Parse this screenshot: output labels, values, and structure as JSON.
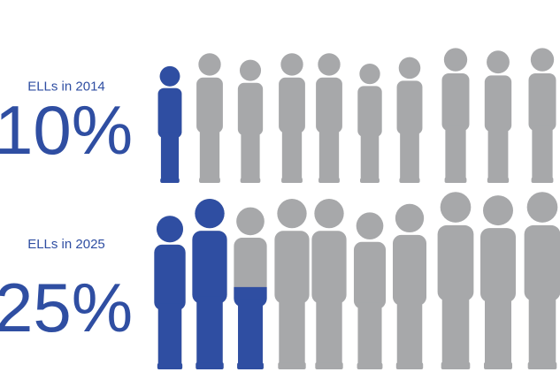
{
  "chart_data": [
    {
      "type": "pictograph",
      "title": "ELLs in 2014",
      "values": [
        10
      ],
      "value_labels": [
        "10%"
      ],
      "ylim": [
        0,
        100
      ],
      "color": "#2f4ea2",
      "base_color": "#a7a8aa"
    },
    {
      "type": "pictograph",
      "title": "ELLs in 2025",
      "values": [
        25
      ],
      "value_labels": [
        "25%"
      ],
      "ylim": [
        0,
        100
      ],
      "color": "#2f4ea2",
      "base_color": "#a7a8aa"
    }
  ]
}
